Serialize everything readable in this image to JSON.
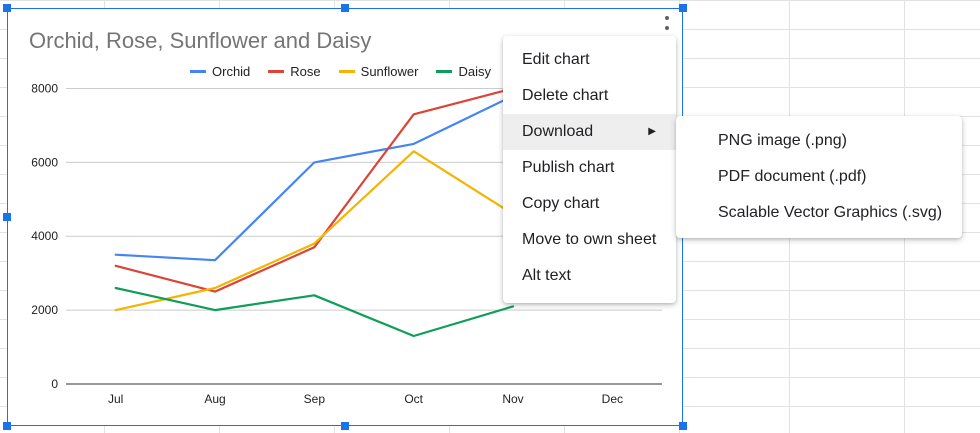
{
  "chart_data": {
    "type": "line",
    "title": "Orchid, Rose, Sunflower and Daisy",
    "categories": [
      "Jul",
      "Aug",
      "Sep",
      "Oct",
      "Nov",
      "Dec"
    ],
    "y_ticks": [
      0,
      2000,
      4000,
      6000,
      8000
    ],
    "ylim": [
      0,
      8500
    ],
    "grid": true,
    "legend_position": "top",
    "series": [
      {
        "name": "Orchid",
        "color": "#4285f4",
        "values": [
          3500,
          3350,
          6000,
          6500,
          7800,
          null
        ]
      },
      {
        "name": "Rose",
        "color": "#db4437",
        "values": [
          3200,
          2500,
          3700,
          7300,
          8000,
          null
        ]
      },
      {
        "name": "Sunflower",
        "color": "#f4b400",
        "values": [
          2000,
          2600,
          3800,
          6300,
          4600,
          null
        ]
      },
      {
        "name": "Daisy",
        "color": "#0f9d58",
        "values": [
          2600,
          2000,
          2400,
          1300,
          2100,
          null
        ]
      }
    ]
  },
  "context_menu": {
    "items": [
      {
        "label": "Edit chart"
      },
      {
        "label": "Delete chart"
      },
      {
        "label": "Download",
        "has_submenu": true
      },
      {
        "label": "Publish chart"
      },
      {
        "label": "Copy chart"
      },
      {
        "label": "Move to own sheet"
      },
      {
        "label": "Alt text"
      }
    ],
    "submenu_arrow": "▶",
    "download_submenu": [
      {
        "label": "PNG image (.png)"
      },
      {
        "label": "PDF document (.pdf)"
      },
      {
        "label": "Scalable Vector Graphics (.svg)"
      }
    ]
  }
}
